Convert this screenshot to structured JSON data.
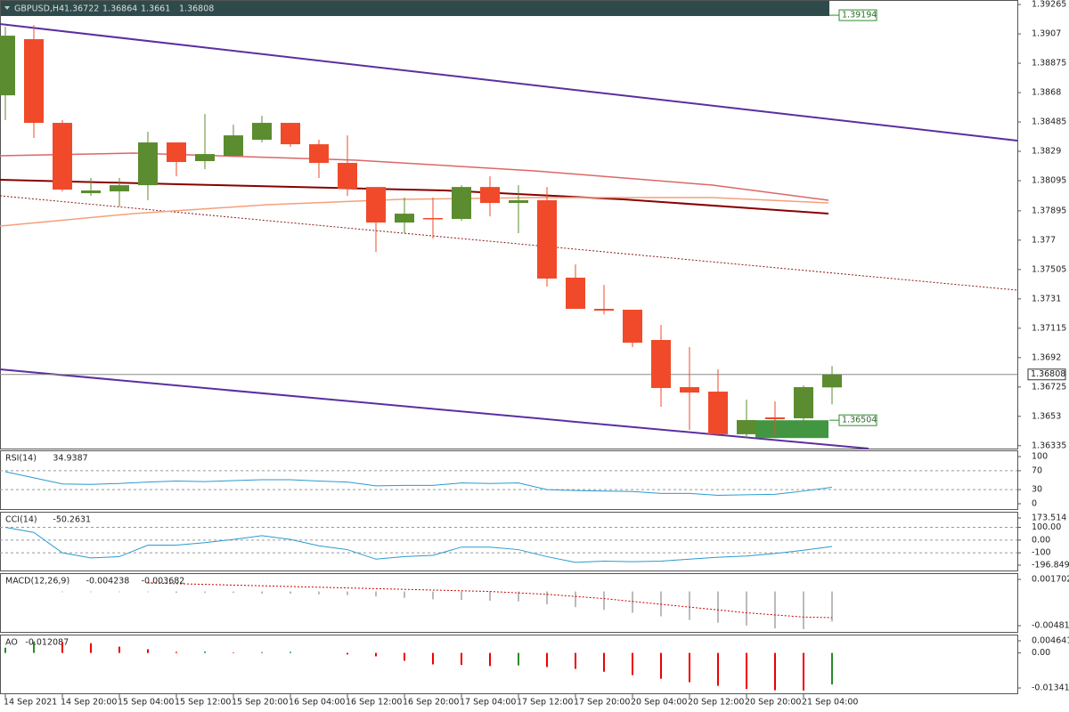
{
  "header": {
    "symbol": "GBPUSD,H4",
    "ohlc": [
      1.36722,
      1.36864,
      1.3661,
      1.36808
    ]
  },
  "price": {
    "ylim": [
      1.3631,
      1.39295
    ],
    "ticks": [
      1.39265,
      1.3907,
      1.38875,
      1.3868,
      1.38485,
      1.3829,
      1.38095,
      1.37895,
      1.377,
      1.37505,
      1.3731,
      1.37115,
      1.3692,
      1.36725,
      1.3653,
      1.36335
    ],
    "levels": [
      1.39194,
      1.36504
    ],
    "bid": 1.36808,
    "candles": [
      [
        1.38662,
        1.39117,
        1.38497,
        1.39058
      ],
      [
        1.39035,
        1.39129,
        1.38379,
        1.38479
      ],
      [
        1.38479,
        1.38497,
        1.38024,
        1.38036
      ],
      [
        1.38012,
        1.38113,
        1.37994,
        1.3803
      ],
      [
        1.38024,
        1.38113,
        1.37923,
        1.38065
      ],
      [
        1.38065,
        1.3842,
        1.37965,
        1.38349
      ],
      [
        1.38349,
        1.38349,
        1.38124,
        1.38219
      ],
      [
        1.38225,
        1.38538,
        1.38172,
        1.38272
      ],
      [
        1.3826,
        1.38467,
        1.3826,
        1.38396
      ],
      [
        1.38367,
        1.38526,
        1.38349,
        1.38479
      ],
      [
        1.38479,
        1.38479,
        1.38319,
        1.38337
      ],
      [
        1.38337,
        1.38367,
        1.38113,
        1.38213
      ],
      [
        1.38213,
        1.38396,
        1.37994,
        1.38042
      ],
      [
        1.38053,
        1.38053,
        1.37622,
        1.37817
      ],
      [
        1.37817,
        1.37983,
        1.37746,
        1.37876
      ],
      [
        1.37847,
        1.37983,
        1.37711,
        1.37841
      ],
      [
        1.37841,
        1.38065,
        1.37829,
        1.38053
      ],
      [
        1.38053,
        1.38124,
        1.37858,
        1.37947
      ],
      [
        1.37947,
        1.38065,
        1.37746,
        1.37965
      ],
      [
        1.37965,
        1.38053,
        1.37392,
        1.37445
      ],
      [
        1.37451,
        1.37539,
        1.37244,
        1.37244
      ],
      [
        1.37244,
        1.37403,
        1.37208,
        1.37232
      ],
      [
        1.37238,
        1.37238,
        1.3699,
        1.37019
      ],
      [
        1.37037,
        1.37137,
        1.36594,
        1.36718
      ],
      [
        1.36724,
        1.3699,
        1.3644,
        1.36688
      ],
      [
        1.36694,
        1.36842,
        1.36399,
        1.36411
      ],
      [
        1.36411,
        1.36641,
        1.36387,
        1.36505
      ],
      [
        1.36523,
        1.36629,
        1.36399,
        1.36511
      ],
      [
        1.36517,
        1.36735,
        1.36458,
        1.36724
      ],
      [
        1.36722,
        1.36864,
        1.3661,
        1.36808
      ]
    ]
  },
  "time_labels": [
    "14 Sep 2021",
    "14 Sep 20:00",
    "15 Sep 04:00",
    "15 Sep 12:00",
    "15 Sep 20:00",
    "16 Sep 04:00",
    "16 Sep 12:00",
    "16 Sep 20:00",
    "17 Sep 04:00",
    "17 Sep 12:00",
    "17 Sep 20:00",
    "20 Sep 04:00",
    "20 Sep 12:00",
    "20 Sep 20:00",
    "21 Sep 04:00"
  ],
  "rsi": {
    "name": "RSI(14)",
    "ylim": [
      0,
      100
    ],
    "ticks": [
      100,
      70,
      30,
      0
    ],
    "values": [
      68,
      55,
      42,
      41,
      43,
      46,
      48,
      47,
      49,
      51,
      51,
      48,
      46,
      38,
      39,
      39,
      44,
      43,
      44,
      30,
      28,
      27,
      26,
      22,
      22,
      18,
      19,
      20,
      27,
      34.9387
    ]
  },
  "cci": {
    "name": "CCI(14)",
    "ylim": [
      -196.849,
      173.514
    ],
    "ticks": [
      173.514,
      {
        "value": 100,
        "label": "100.00"
      },
      {
        "value": 0,
        "label": "0.00"
      },
      -100,
      -196.849
    ],
    "values": [
      100,
      60,
      -100,
      -140,
      -130,
      -40,
      -40,
      -20,
      5,
      35,
      5,
      -45,
      -75,
      -150,
      -130,
      -120,
      -55,
      -55,
      -75,
      -130,
      -175,
      -165,
      -170,
      -165,
      -150,
      -135,
      -125,
      -105,
      -80,
      -50.2631
    ]
  },
  "macd": {
    "name": "MACD(12,26,9)",
    "ylim": [
      -0.004814,
      0.001702
    ],
    "ticks": [
      0.001702,
      -0.004814
    ],
    "values": [
      0,
      0,
      -0.0001,
      -0.0001,
      -0.0001,
      -0.0001,
      -0.0002,
      -0.0002,
      -0.0002,
      -0.0003,
      -0.0003,
      -0.0004,
      -0.0005,
      -0.0007,
      -0.0009,
      -0.0011,
      -0.0012,
      -0.0013,
      -0.0014,
      -0.0018,
      -0.0022,
      -0.0026,
      -0.003,
      -0.0035,
      -0.004,
      -0.0044,
      -0.0048,
      -0.0052,
      -0.0053,
      -0.004238
    ],
    "signal": [
      null,
      null,
      null,
      null,
      null,
      0.0012,
      0.0011,
      0.001,
      0.0009,
      0.0008,
      0.0007,
      0.0006,
      0.0005,
      0.0004,
      0.0003,
      0.0002,
      0.0001,
      0,
      -0.0002,
      -0.0004,
      -0.0007,
      -0.001,
      -0.0014,
      -0.0018,
      -0.0022,
      -0.0026,
      -0.003,
      -0.0033,
      -0.0036,
      -0.003682
    ]
  },
  "ao": {
    "name": "AO",
    "ylim": [
      -0.013419,
      0.004641
    ],
    "ticks": [
      0.004641,
      {
        "value": 0,
        "label": "0.00"
      },
      -0.013419
    ],
    "values": [
      0.002,
      0.0044,
      0.0043,
      0.0037,
      0.0024,
      0.0014,
      0.0004,
      0.0005,
      0.0002,
      0.0003,
      0.0004,
      0,
      -0.0006,
      -0.0013,
      -0.003,
      -0.0044,
      -0.0046,
      -0.005,
      -0.0048,
      -0.0054,
      -0.0061,
      -0.0072,
      -0.0085,
      -0.0099,
      -0.0112,
      -0.0126,
      -0.0138,
      -0.0143,
      -0.0144,
      -0.012087
    ]
  }
}
